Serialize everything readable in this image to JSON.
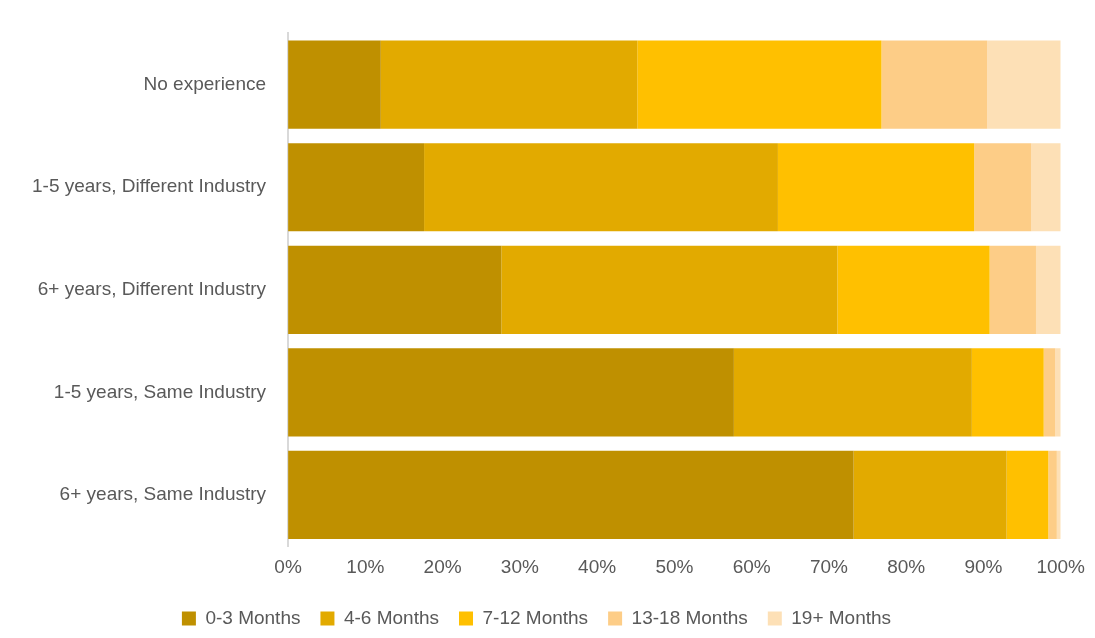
{
  "chart_data": {
    "type": "bar",
    "orientation": "horizontal",
    "stacked": true,
    "grid": false,
    "legend": "bottom",
    "categories": [
      "No experience",
      "1-5 years, Different Industry",
      "6+ years, Different Industry",
      "1-5 years, Same Industry",
      "6+ years, Same Industry"
    ],
    "series": [
      {
        "name": "0-3 Months",
        "color": "#bf9000",
        "values": [
          12,
          17.6,
          27.6,
          57.7,
          73.2
        ]
      },
      {
        "name": "4-6 Months",
        "color": "#e2aa00",
        "values": [
          33.2,
          45.8,
          43.5,
          30.8,
          19.8
        ]
      },
      {
        "name": "7-12 Months",
        "color": "#ffc000",
        "values": [
          31.6,
          25.4,
          19.7,
          9.3,
          5.4
        ]
      },
      {
        "name": "13-18 Months",
        "color": "#fdcd87",
        "values": [
          13.7,
          7.4,
          6,
          1.5,
          1.1
        ]
      },
      {
        "name": "19+ Months",
        "color": "#fde0b6",
        "values": [
          9.5,
          3.8,
          3.2,
          0.7,
          0.5
        ]
      }
    ],
    "xlim": [
      0,
      100
    ],
    "xticks": [
      {
        "value": 0,
        "label": "0%"
      },
      {
        "value": 10,
        "label": "10%"
      },
      {
        "value": 20,
        "label": "20%"
      },
      {
        "value": 30,
        "label": "30%"
      },
      {
        "value": 40,
        "label": "40%"
      },
      {
        "value": 50,
        "label": "50%"
      },
      {
        "value": 60,
        "label": "60%"
      },
      {
        "value": 70,
        "label": "70%"
      },
      {
        "value": 80,
        "label": "80%"
      },
      {
        "value": 90,
        "label": "90%"
      },
      {
        "value": 100,
        "label": "100%"
      }
    ]
  }
}
